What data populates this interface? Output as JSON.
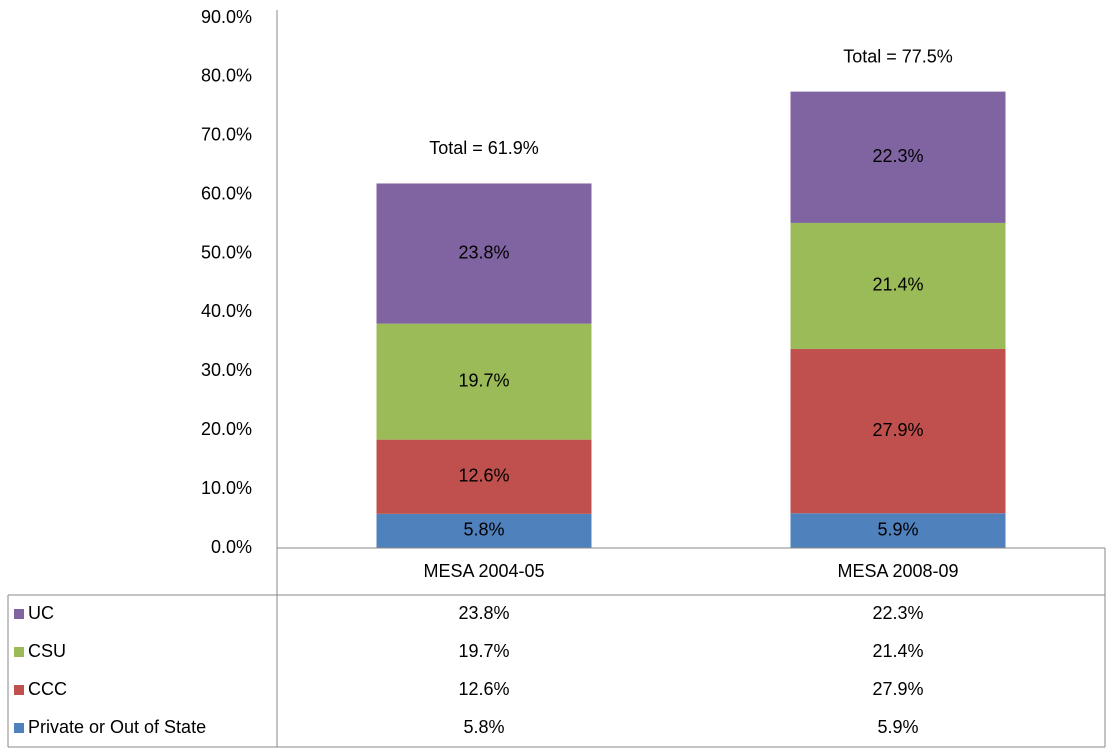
{
  "chart_data": {
    "type": "stacked_bar",
    "categories": [
      "MESA 2004-05",
      "MESA 2008-09"
    ],
    "series": [
      {
        "name": "Private or Out of State",
        "color": "#4f81bd",
        "values": [
          5.8,
          5.9
        ],
        "value_labels": [
          "5.8%",
          "5.9%"
        ]
      },
      {
        "name": "CCC",
        "color": "#c0504d",
        "values": [
          12.6,
          27.9
        ],
        "value_labels": [
          "12.6%",
          "27.9%"
        ]
      },
      {
        "name": "CSU",
        "color": "#9bbb59",
        "values": [
          19.7,
          21.4
        ],
        "value_labels": [
          "19.7%",
          "21.4%"
        ]
      },
      {
        "name": "UC",
        "color": "#8064a2",
        "values": [
          23.8,
          22.3
        ],
        "value_labels": [
          "23.8%",
          "22.3%"
        ]
      }
    ],
    "annotations": [
      "Total = 61.9%",
      "Total = 77.5%"
    ],
    "ylim": [
      0,
      90
    ],
    "yticks": [
      {
        "value": 0,
        "label": "0.0%"
      },
      {
        "value": 10,
        "label": "10.0%"
      },
      {
        "value": 20,
        "label": "20.0%"
      },
      {
        "value": 30,
        "label": "30.0%"
      },
      {
        "value": 40,
        "label": "40.0%"
      },
      {
        "value": 50,
        "label": "50.0%"
      },
      {
        "value": 60,
        "label": "60.0%"
      },
      {
        "value": 70,
        "label": "70.0%"
      },
      {
        "value": 80,
        "label": "80.0%"
      },
      {
        "value": 90,
        "label": "90.0%"
      }
    ],
    "data_table": true
  }
}
